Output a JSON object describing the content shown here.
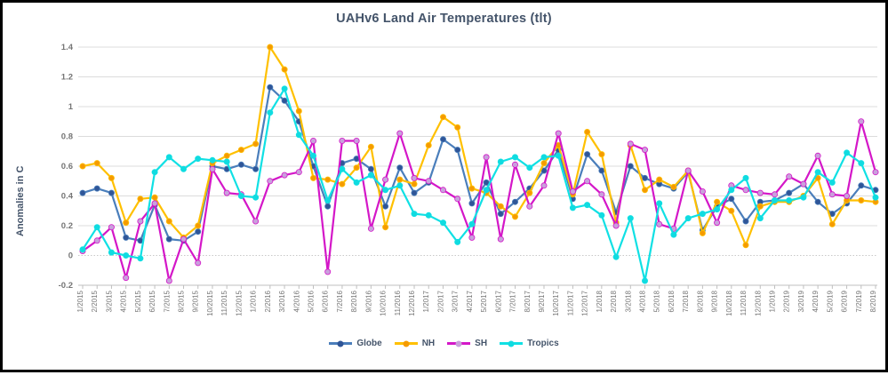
{
  "title": "UAHv6 Land Air Temperatures (tlt)",
  "y_axis_title": "Anomalies in C",
  "colors": {
    "title_text": "#44546A",
    "tick_text": "#757575",
    "gridline": "#DCDCDC",
    "zero_line": "#C8C8C8",
    "axis_line": "#BFBFBF",
    "page_border": "#000000"
  },
  "chart_data": {
    "type": "line",
    "title": "UAHv6 Land Air Temperatures (tlt)",
    "xlabel": "",
    "ylabel": "Anomalies in C",
    "ylim": [
      -0.2,
      1.4
    ],
    "ytick_step": 0.2,
    "grid": true,
    "legend_position": "bottom",
    "x_tick_rotation": -90,
    "categories": [
      "1/2015",
      "2/2015",
      "3/2015",
      "4/2015",
      "5/2015",
      "6/2015",
      "7/2015",
      "8/2015",
      "9/2015",
      "10/2015",
      "11/2015",
      "12/2015",
      "1/2016",
      "2/2016",
      "3/2016",
      "4/2016",
      "5/2016",
      "6/2016",
      "7/2016",
      "8/2016",
      "9/2016",
      "10/2016",
      "11/2016",
      "12/2016",
      "1/2017",
      "2/2017",
      "3/2017",
      "4/2017",
      "5/2017",
      "6/2017",
      "7/2017",
      "8/2017",
      "9/2017",
      "10/2017",
      "11/2017",
      "12/2017",
      "1/2018",
      "2/2018",
      "3/2018",
      "4/2018",
      "5/2018",
      "6/2018",
      "7/2018",
      "8/2018",
      "9/2018",
      "10/2018",
      "11/2018",
      "12/2018",
      "1/2019",
      "2/2019",
      "3/2019",
      "4/2019",
      "5/2019",
      "6/2019",
      "7/2019",
      "8/2019"
    ],
    "series": [
      {
        "name": "Globe",
        "color": "#4A7EBB",
        "marker_color": "#2F5597",
        "values": [
          0.42,
          0.45,
          0.42,
          0.12,
          0.1,
          0.34,
          0.11,
          0.1,
          0.16,
          0.6,
          0.58,
          0.61,
          0.58,
          1.13,
          1.04,
          0.9,
          0.6,
          0.33,
          0.62,
          0.65,
          0.58,
          0.33,
          0.59,
          0.42,
          0.49,
          0.78,
          0.71,
          0.35,
          0.49,
          0.28,
          0.36,
          0.45,
          0.57,
          0.71,
          0.38,
          0.68,
          0.57,
          0.29,
          0.6,
          0.52,
          0.48,
          0.45,
          0.56,
          0.17,
          0.33,
          0.38,
          0.23,
          0.36,
          0.37,
          0.42,
          0.48,
          0.36,
          0.28,
          0.35,
          0.47,
          0.44
        ]
      },
      {
        "name": "NH",
        "color": "#FFC000",
        "marker_color": "#F59B00",
        "values": [
          0.6,
          0.62,
          0.52,
          0.22,
          0.38,
          0.39,
          0.23,
          0.12,
          0.2,
          0.62,
          0.67,
          0.71,
          0.75,
          1.4,
          1.25,
          0.97,
          0.52,
          0.51,
          0.48,
          0.59,
          0.73,
          0.19,
          0.51,
          0.48,
          0.74,
          0.93,
          0.86,
          0.45,
          0.42,
          0.33,
          0.26,
          0.42,
          0.62,
          0.74,
          0.41,
          0.83,
          0.68,
          0.22,
          0.74,
          0.44,
          0.51,
          0.46,
          0.57,
          0.15,
          0.36,
          0.3,
          0.07,
          0.33,
          0.36,
          0.36,
          0.4,
          0.52,
          0.21,
          0.37,
          0.37,
          0.36
        ]
      },
      {
        "name": "SH",
        "color": "#D417C8",
        "marker_color": "#C9A0DC",
        "values": [
          0.03,
          0.1,
          0.19,
          -0.15,
          0.23,
          0.35,
          -0.17,
          0.11,
          -0.05,
          0.58,
          0.42,
          0.41,
          0.23,
          0.5,
          0.54,
          0.56,
          0.77,
          -0.11,
          0.77,
          0.77,
          0.18,
          0.51,
          0.82,
          0.52,
          0.5,
          0.44,
          0.38,
          0.12,
          0.66,
          0.11,
          0.61,
          0.33,
          0.47,
          0.82,
          0.43,
          0.5,
          0.41,
          0.2,
          0.75,
          0.71,
          0.21,
          0.18,
          0.57,
          0.43,
          0.22,
          0.47,
          0.44,
          0.42,
          0.41,
          0.53,
          0.48,
          0.67,
          0.41,
          0.4,
          0.9,
          0.56
        ]
      },
      {
        "name": "Tropics",
        "color": "#10E0E4",
        "marker_color": "#10DBE0",
        "values": [
          0.04,
          0.19,
          0.02,
          0.0,
          -0.02,
          0.56,
          0.66,
          0.58,
          0.65,
          0.64,
          0.63,
          0.4,
          0.39,
          0.96,
          1.12,
          0.81,
          0.67,
          0.37,
          0.58,
          0.49,
          0.54,
          0.44,
          0.47,
          0.28,
          0.27,
          0.22,
          0.09,
          0.21,
          0.44,
          0.63,
          0.66,
          0.59,
          0.66,
          0.67,
          0.32,
          0.34,
          0.27,
          -0.01,
          0.25,
          -0.17,
          0.35,
          0.14,
          0.25,
          0.28,
          0.31,
          0.44,
          0.52,
          0.25,
          0.37,
          0.37,
          0.39,
          0.56,
          0.49,
          0.69,
          0.62,
          0.39
        ]
      }
    ]
  }
}
